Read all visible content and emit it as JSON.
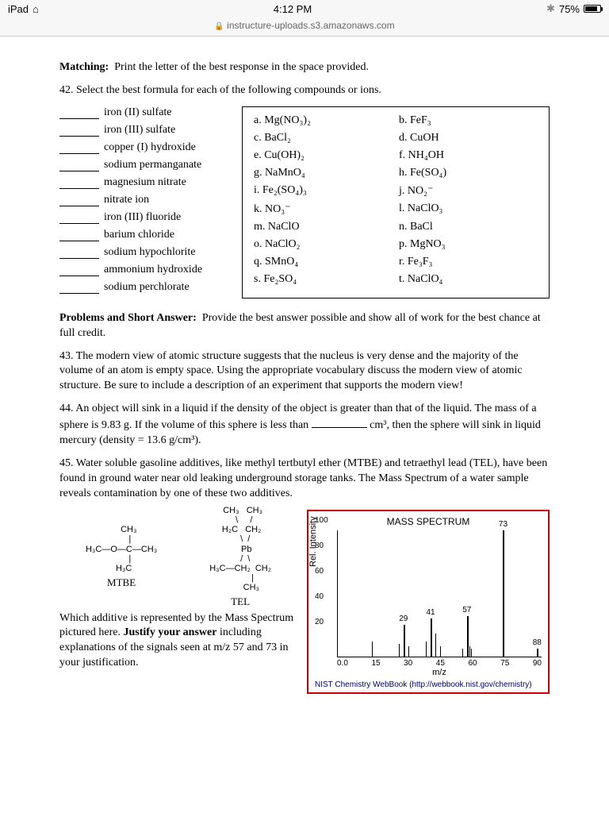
{
  "status": {
    "device": "iPad",
    "time": "4:12 PM",
    "battery_pct": "75%",
    "url": "instructure-uploads.s3.amazonaws.com"
  },
  "matching": {
    "heading": "Matching:",
    "instructions": "Print the letter of the best response in the space provided.",
    "q42_prompt": "42.  Select the best formula for each of the following compounds or ions.",
    "items": [
      "iron (II) sulfate",
      "iron (III) sulfate",
      "copper (I) hydroxide",
      "sodium permanganate",
      "magnesium nitrate",
      "nitrate ion",
      "iron (III) fluoride",
      "barium chloride",
      "sodium hypochlorite",
      "ammonium hydroxide",
      "sodium perchlorate"
    ],
    "options": {
      "a": "a. Mg(NO₃)₂",
      "b": "b. FeF₃",
      "c": "c. BaCl₂",
      "d": "d. CuOH",
      "e": "e. Cu(OH)₂",
      "f": "f. NH₄OH",
      "g": "g. NaMnO₄",
      "h": "h. Fe(SO₄)",
      "i": "i. Fe₂(SO₄)₃",
      "j": "j. NO₂⁻",
      "k": "k. NO₃⁻",
      "l": "l. NaClO₃",
      "m": "m. NaClO",
      "n": "n. BaCl",
      "o": "o. NaClO₂",
      "p": "p. MgNO₃",
      "q": "q. SMnO₄",
      "r": "r. Fe₃F₃",
      "s": "s. Fe₂SO₄",
      "t": "t. NaClO₄"
    }
  },
  "problems": {
    "heading": "Problems and Short Answer:",
    "instructions": "Provide the best answer possible and show all of work for the best chance at full credit.",
    "q43": "43.  The modern view of atomic structure suggests that the nucleus is very dense and the majority of the volume of an atom is empty space.  Using the appropriate vocabulary discuss the modern view of atomic structure.  Be sure to include a description of an experiment that supports the modern view!",
    "q44_a": "44. An object will sink in a liquid if the density of the object is greater than that of the liquid.  The mass of a sphere is 9.83 g. If the volume of this sphere is less than ",
    "q44_b": " cm³, then the sphere will sink in liquid mercury (density = 13.6 g/cm³).",
    "q45": "45. Water soluble gasoline additives, like methyl tertbutyl ether (MTBE) and tetraethyl lead (TEL), have been found in ground water near old leaking underground storage tanks. The Mass Spectrum of a water sample reveals contamination by one of these two additives.",
    "q45_sub": "Which additive is represented by the Mass Spectrum pictured here. ",
    "q45_just_b": "Justify your answer",
    "q45_sub2": " including explanations of the signals seen at m/z 57 and 73 in your justification.",
    "mtbe_label": "MTBE",
    "tel_label": "TEL"
  },
  "spectrum": {
    "title": "MASS SPECTRUM",
    "ylabel": "Rel. Intensity",
    "xlabel": "m/z",
    "yticks": [
      "100",
      "80",
      "60",
      "40",
      "20",
      "0.0"
    ],
    "xticks": [
      "0.0",
      "15",
      "30",
      "45",
      "60",
      "75",
      "90"
    ],
    "ylim": [
      0,
      100
    ],
    "xlim": [
      0,
      90
    ],
    "border_color": "#c00",
    "peaks": [
      {
        "mz": 29,
        "intensity": 25,
        "label": "29"
      },
      {
        "mz": 41,
        "intensity": 30,
        "label": "41"
      },
      {
        "mz": 57,
        "intensity": 32,
        "label": "57"
      },
      {
        "mz": 73,
        "intensity": 100,
        "label": "73"
      },
      {
        "mz": 88,
        "intensity": 6,
        "label": "88"
      }
    ],
    "minor_peaks": [
      {
        "mz": 15,
        "intensity": 12
      },
      {
        "mz": 27,
        "intensity": 10
      },
      {
        "mz": 31,
        "intensity": 8
      },
      {
        "mz": 39,
        "intensity": 12
      },
      {
        "mz": 43,
        "intensity": 18
      },
      {
        "mz": 45,
        "intensity": 8
      },
      {
        "mz": 55,
        "intensity": 6
      },
      {
        "mz": 58,
        "intensity": 8
      },
      {
        "mz": 59,
        "intensity": 6
      }
    ],
    "nist": "NIST Chemistry WebBook (http://webbook.nist.gov/chemistry)"
  }
}
